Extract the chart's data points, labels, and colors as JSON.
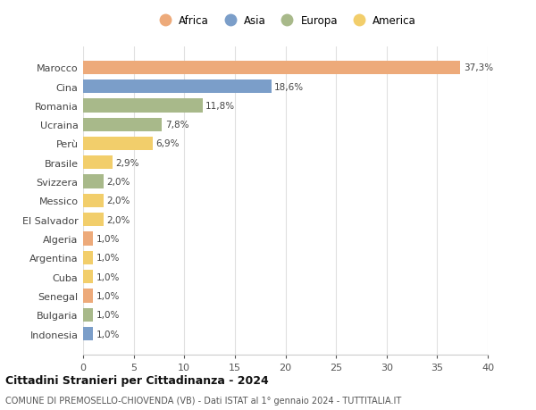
{
  "categories": [
    "Marocco",
    "Cina",
    "Romania",
    "Ucraina",
    "Perù",
    "Brasile",
    "Svizzera",
    "Messico",
    "El Salvador",
    "Algeria",
    "Argentina",
    "Cuba",
    "Senegal",
    "Bulgaria",
    "Indonesia"
  ],
  "values": [
    37.3,
    18.6,
    11.8,
    7.8,
    6.9,
    2.9,
    2.0,
    2.0,
    2.0,
    1.0,
    1.0,
    1.0,
    1.0,
    1.0,
    1.0
  ],
  "labels": [
    "37,3%",
    "18,6%",
    "11,8%",
    "7,8%",
    "6,9%",
    "2,9%",
    "2,0%",
    "2,0%",
    "2,0%",
    "1,0%",
    "1,0%",
    "1,0%",
    "1,0%",
    "1,0%",
    "1,0%"
  ],
  "continents": [
    "Africa",
    "Asia",
    "Europa",
    "Europa",
    "America",
    "America",
    "Europa",
    "America",
    "America",
    "Africa",
    "America",
    "America",
    "Africa",
    "Europa",
    "Asia"
  ],
  "colors": {
    "Africa": "#EDAA7A",
    "Asia": "#7B9EC9",
    "Europa": "#A8B98A",
    "America": "#F2CE6B"
  },
  "legend_order": [
    "Africa",
    "Asia",
    "Europa",
    "America"
  ],
  "legend_colors": [
    "#EDAA7A",
    "#7B9EC9",
    "#A8B98A",
    "#F2CE6B"
  ],
  "xlim": [
    0,
    40
  ],
  "xticks": [
    0,
    5,
    10,
    15,
    20,
    25,
    30,
    35,
    40
  ],
  "title": "Cittadini Stranieri per Cittadinanza - 2024",
  "subtitle": "COMUNE DI PREMOSELLO-CHIOVENDA (VB) - Dati ISTAT al 1° gennaio 2024 - TUTTITALIA.IT",
  "background_color": "#ffffff",
  "grid_color": "#e0e0e0"
}
